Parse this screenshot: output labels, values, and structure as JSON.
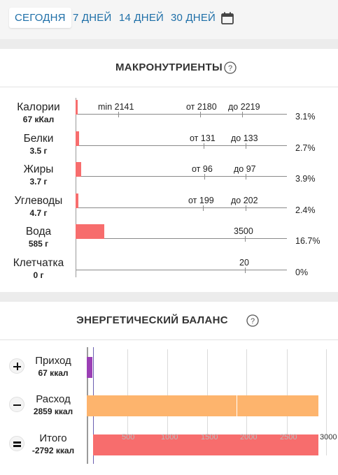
{
  "period_tabs": [
    {
      "label": "СЕГОДНЯ",
      "active": true
    },
    {
      "label": "7 ДНЕЙ",
      "active": false
    },
    {
      "label": "14 ДНЕЙ",
      "active": false
    },
    {
      "label": "30 ДНЕЙ",
      "active": false
    }
  ],
  "icons": {
    "calendar": "calendar-icon",
    "help": "question-circle-icon"
  },
  "macros": {
    "title": "МАКРОНУТРИЕНТЫ",
    "rows": [
      {
        "name": "Калории",
        "amount": "67 кКал",
        "bar_fraction": 0.005,
        "marks": [
          "min 2141",
          "от 2180",
          "до 2219"
        ],
        "percent": "3.1%"
      },
      {
        "name": "Белки",
        "amount": "3.5 г",
        "bar_fraction": 0.015,
        "marks": [
          "от 131",
          "до 133"
        ],
        "percent": "2.7%"
      },
      {
        "name": "Жиры",
        "amount": "3.7 г",
        "bar_fraction": 0.025,
        "marks": [
          "от 96",
          "до 97"
        ],
        "percent": "3.9%"
      },
      {
        "name": "Углеводы",
        "amount": "4.7 г",
        "bar_fraction": 0.012,
        "marks": [
          "от 199",
          "до 202"
        ],
        "percent": "2.4%"
      },
      {
        "name": "Вода",
        "amount": "585 г",
        "bar_fraction": 0.135,
        "marks": [
          "3500"
        ],
        "percent": "16.7%"
      },
      {
        "name": "Клетчатка",
        "amount": "0 г",
        "bar_fraction": 0,
        "marks": [
          "20"
        ],
        "percent": "0%"
      }
    ]
  },
  "energy": {
    "title": "ЭНЕРГЕТИЧЕСКИЙ БАЛАНС",
    "rows": [
      {
        "label": "Приход",
        "amount": "67 ккал",
        "sign": "plus",
        "value": 67
      },
      {
        "label": "Расход",
        "amount": "2859 ккал",
        "sign": "minus",
        "value": 2859
      },
      {
        "label": "Итого",
        "amount": "-2792 ккал",
        "sign": "equals",
        "value": -2792
      }
    ],
    "axis_max_label": "3000",
    "faint_tick_labels": [
      "500",
      "1000",
      "1500",
      "2000",
      "2500"
    ],
    "colors": {
      "income": "#9b3fb5",
      "expense": "#fdb46d",
      "total": "#f76d6d"
    }
  }
}
